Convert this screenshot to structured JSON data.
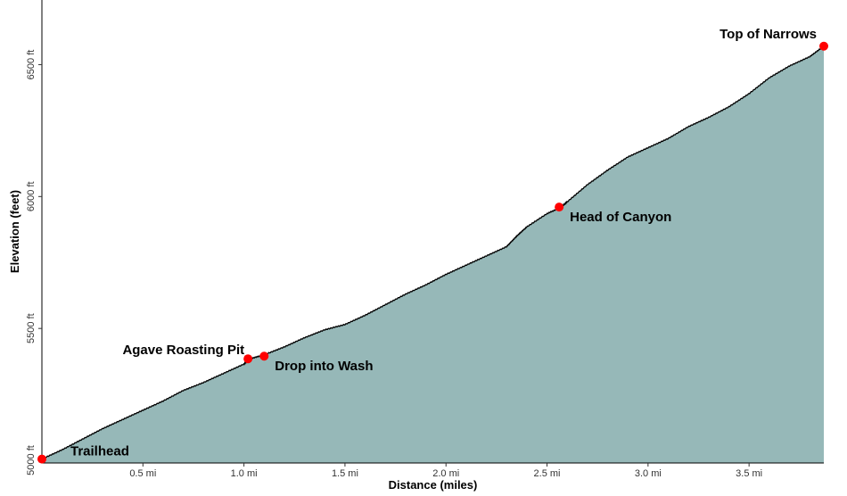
{
  "chart_data": {
    "type": "area",
    "xlabel": "Distance (miles)",
    "ylabel": "Elevation (feet)",
    "xlim": [
      0,
      3.87
    ],
    "ylim": [
      4990,
      6745
    ],
    "x_ticks": [
      {
        "value": 0.5,
        "label": "0.5 mi"
      },
      {
        "value": 1.0,
        "label": "1.0 mi"
      },
      {
        "value": 1.5,
        "label": "1.5 mi"
      },
      {
        "value": 2.0,
        "label": "2.0 mi"
      },
      {
        "value": 2.5,
        "label": "2.5 mi"
      },
      {
        "value": 3.0,
        "label": "3.0 mi"
      },
      {
        "value": 3.5,
        "label": "3.5 mi"
      }
    ],
    "y_ticks": [
      {
        "value": 5000,
        "label": "5000 ft"
      },
      {
        "value": 5500,
        "label": "5500 ft"
      },
      {
        "value": 6000,
        "label": "6000 ft"
      },
      {
        "value": 6500,
        "label": "6500 ft"
      }
    ],
    "profile": {
      "x": [
        0,
        0.1,
        0.2,
        0.3,
        0.4,
        0.5,
        0.6,
        0.7,
        0.8,
        0.9,
        1.0,
        1.03,
        1.1,
        1.2,
        1.3,
        1.4,
        1.5,
        1.6,
        1.7,
        1.8,
        1.9,
        2.0,
        2.1,
        2.2,
        2.3,
        2.35,
        2.4,
        2.5,
        2.57,
        2.6,
        2.7,
        2.8,
        2.9,
        3.0,
        3.1,
        3.2,
        3.3,
        3.4,
        3.5,
        3.6,
        3.7,
        3.8,
        3.87
      ],
      "y": [
        5005,
        5040,
        5080,
        5120,
        5155,
        5190,
        5225,
        5265,
        5295,
        5330,
        5365,
        5385,
        5400,
        5430,
        5465,
        5495,
        5515,
        5550,
        5590,
        5630,
        5665,
        5705,
        5740,
        5775,
        5810,
        5850,
        5885,
        5935,
        5960,
        5980,
        6045,
        6100,
        6150,
        6185,
        6220,
        6265,
        6300,
        6340,
        6390,
        6450,
        6495,
        6530,
        6570
      ]
    },
    "waypoints": [
      {
        "name": "Trailhead",
        "x": 0.0,
        "y": 5005,
        "label_side": "right-up"
      },
      {
        "name": "Agave Roasting Pit",
        "x": 1.02,
        "y": 5385,
        "label_side": "left"
      },
      {
        "name": "Drop into Wash",
        "x": 1.1,
        "y": 5395,
        "label_side": "right-down"
      },
      {
        "name": "Head of Canyon",
        "x": 2.56,
        "y": 5960,
        "label_side": "right-down"
      },
      {
        "name": "Top of Narrows",
        "x": 3.87,
        "y": 6570,
        "label_side": "left-up"
      }
    ],
    "fill_color": "#96b8b8",
    "line_color": "#000000",
    "marker_color": "#ff0000",
    "grid": false
  }
}
